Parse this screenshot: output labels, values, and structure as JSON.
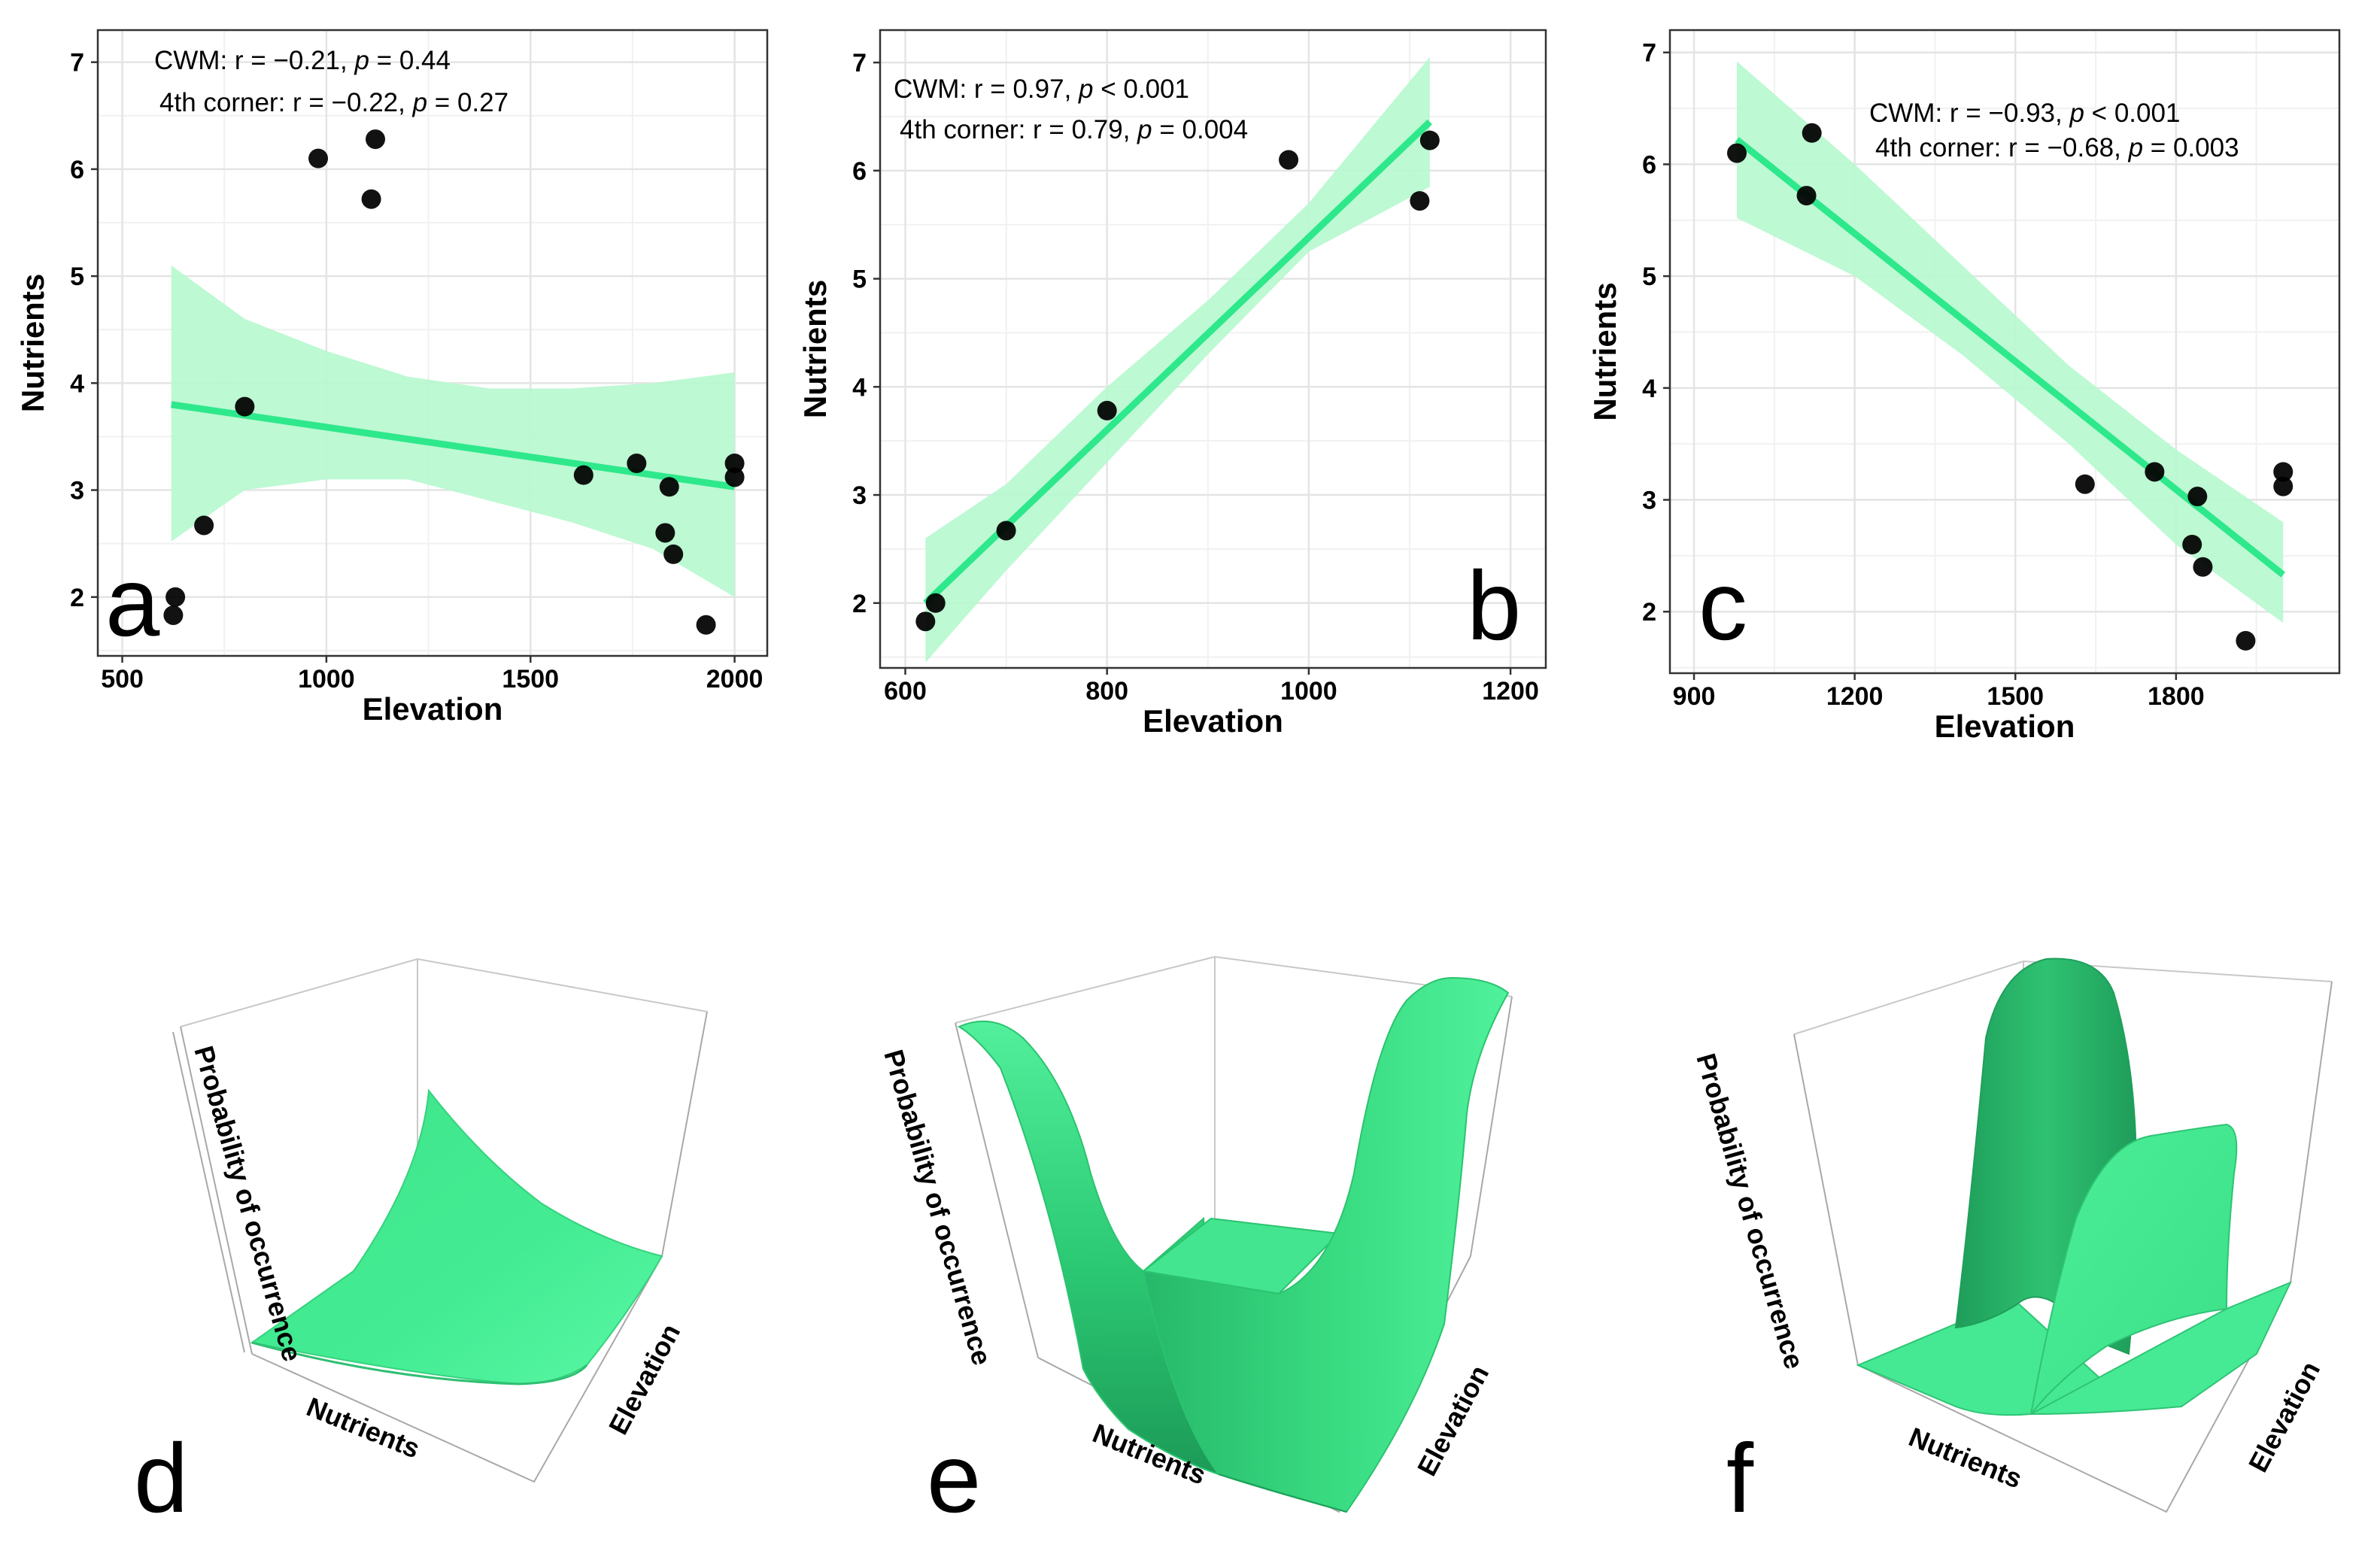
{
  "chart_data": [
    {
      "panel": "a",
      "type": "scatter",
      "xlabel": "Elevation",
      "ylabel": "Nutrients",
      "xlim": [
        440,
        2080
      ],
      "ylim": [
        1.45,
        7.3
      ],
      "xticks": [
        500,
        1000,
        1500,
        2000
      ],
      "yticks": [
        2,
        3,
        4,
        5,
        6,
        7
      ],
      "stats": [
        "CWM: r = −0.21, p = 0.44",
        "4th corner: r = −0.22, p = 0.27"
      ],
      "points": [
        [
          625,
          1.83
        ],
        [
          630,
          2.0
        ],
        [
          700,
          2.67
        ],
        [
          800,
          3.78
        ],
        [
          980,
          6.1
        ],
        [
          1110,
          5.72
        ],
        [
          1120,
          6.28
        ],
        [
          1630,
          3.14
        ],
        [
          1760,
          3.25
        ],
        [
          1830,
          2.6
        ],
        [
          1840,
          3.03
        ],
        [
          1850,
          2.4
        ],
        [
          1930,
          1.74
        ],
        [
          2000,
          3.25
        ],
        [
          2000,
          3.12
        ]
      ],
      "fit": {
        "x": [
          620,
          2000
        ],
        "y": [
          3.8,
          3.03
        ]
      },
      "band": {
        "x": [
          620,
          800,
          1000,
          1200,
          1400,
          1600,
          1800,
          2000
        ],
        "lower": [
          2.52,
          3.0,
          3.1,
          3.1,
          2.9,
          2.7,
          2.45,
          2.0
        ],
        "upper": [
          5.1,
          4.6,
          4.3,
          4.06,
          3.95,
          3.95,
          4.0,
          4.1
        ]
      }
    },
    {
      "panel": "b",
      "type": "scatter",
      "xlabel": "Elevation",
      "ylabel": "Nutrients",
      "xlim": [
        575,
        1235
      ],
      "ylim": [
        1.4,
        7.3
      ],
      "xticks": [
        600,
        800,
        1000,
        1200
      ],
      "yticks": [
        2,
        3,
        4,
        5,
        6,
        7
      ],
      "stats": [
        "CWM: r = 0.97, p < 0.001",
        "4th corner: r = 0.79, p = 0.004"
      ],
      "points": [
        [
          620,
          1.83
        ],
        [
          630,
          2.0
        ],
        [
          700,
          2.67
        ],
        [
          800,
          3.78
        ],
        [
          980,
          6.1
        ],
        [
          1110,
          5.72
        ],
        [
          1120,
          6.28
        ]
      ],
      "fit": {
        "x": [
          620,
          1120
        ],
        "y": [
          2.0,
          6.45
        ]
      },
      "band": {
        "x": [
          620,
          700,
          800,
          900,
          1000,
          1120
        ],
        "lower": [
          1.45,
          2.3,
          3.3,
          4.3,
          5.25,
          5.85
        ],
        "upper": [
          2.6,
          3.1,
          4.0,
          4.8,
          5.7,
          7.05
        ]
      }
    },
    {
      "panel": "c",
      "type": "scatter",
      "xlabel": "Elevation",
      "ylabel": "Nutrients",
      "xlim": [
        855,
        2105
      ],
      "ylim": [
        1.45,
        7.2
      ],
      "xticks": [
        900,
        1200,
        1500,
        1800
      ],
      "yticks": [
        2,
        3,
        4,
        5,
        6,
        7
      ],
      "stats": [
        "CWM: r = −0.93, p < 0.001",
        "4th corner: r = −0.68, p = 0.003"
      ],
      "points": [
        [
          980,
          6.1
        ],
        [
          1110,
          5.72
        ],
        [
          1120,
          6.28
        ],
        [
          1630,
          3.14
        ],
        [
          1760,
          3.25
        ],
        [
          1830,
          2.6
        ],
        [
          1840,
          3.03
        ],
        [
          1850,
          2.4
        ],
        [
          1930,
          1.74
        ],
        [
          2000,
          3.25
        ],
        [
          2000,
          3.12
        ]
      ],
      "fit": {
        "x": [
          980,
          2000
        ],
        "y": [
          6.22,
          2.33
        ]
      },
      "band": {
        "x": [
          980,
          1200,
          1400,
          1600,
          1800,
          2000
        ],
        "lower": [
          5.52,
          5.0,
          4.3,
          3.5,
          2.6,
          1.9
        ],
        "upper": [
          6.92,
          6.0,
          5.1,
          4.2,
          3.45,
          2.8
        ]
      }
    }
  ],
  "surfaces": [
    {
      "panel": "d",
      "zlabel": "Probability of occurrence",
      "xlabel": "Nutrients",
      "ylabel": "Elevation"
    },
    {
      "panel": "e",
      "zlabel": "Probability of occurrence",
      "xlabel": "Nutrients",
      "ylabel": "Elevation"
    },
    {
      "panel": "f",
      "zlabel": "Probability of occurrence",
      "xlabel": "Nutrients",
      "ylabel": "Elevation"
    }
  ],
  "colors": {
    "fit_line": "#2ee88c",
    "band": "#b6f8ce",
    "point": "#000000",
    "surface_light": "#5cf59e",
    "surface_mid": "#33d77c",
    "surface_dark": "#1ea85c"
  }
}
